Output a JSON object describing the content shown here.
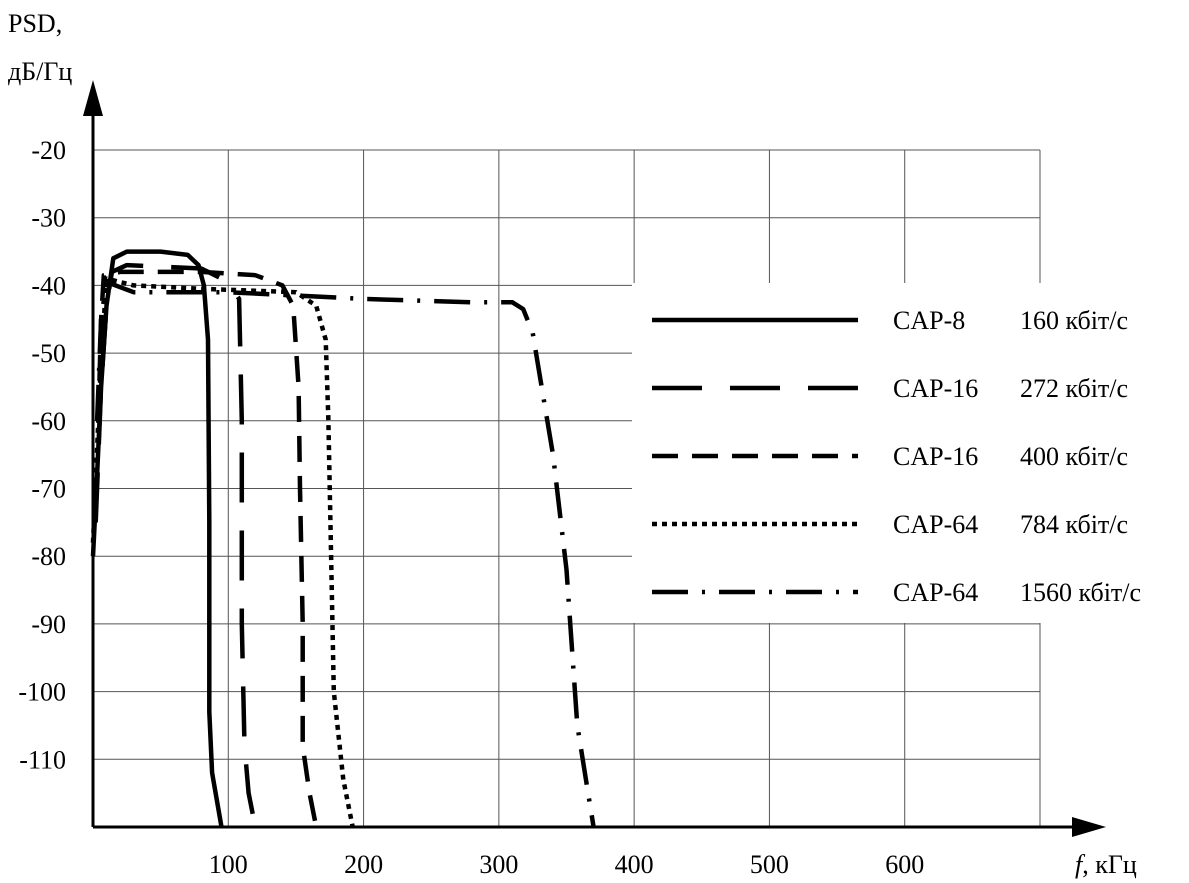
{
  "chart_data": {
    "type": "line",
    "title": "",
    "ylabel_line1": "PSD,",
    "ylabel_line2": "дБ/Гц",
    "xlabel_italic": "f",
    "xlabel_unit": ", кГц",
    "xlim": [
      0,
      700
    ],
    "ylim": [
      -120,
      -20
    ],
    "x_ticks": [
      100,
      200,
      300,
      400,
      500,
      600
    ],
    "y_ticks": [
      -20,
      -30,
      -40,
      -50,
      -60,
      -70,
      -80,
      -90,
      -100,
      -110
    ],
    "grid": true,
    "legend_position": "right",
    "series": [
      {
        "name": "CAP-8",
        "rate": "160 кбіт/с",
        "dash": "solid",
        "points": [
          [
            0,
            -80
          ],
          [
            3,
            -68
          ],
          [
            6,
            -55
          ],
          [
            10,
            -43
          ],
          [
            15,
            -36
          ],
          [
            25,
            -35
          ],
          [
            50,
            -35
          ],
          [
            70,
            -35.5
          ],
          [
            78,
            -37
          ],
          [
            82,
            -40
          ],
          [
            85,
            -48
          ],
          [
            86,
            -75
          ],
          [
            86,
            -103
          ],
          [
            88,
            -112
          ],
          [
            95,
            -120
          ]
        ]
      },
      {
        "name": "CAP-16",
        "rate": "272 кбіт/с",
        "dash": "longdash",
        "points": [
          [
            2,
            -75
          ],
          [
            6,
            -55
          ],
          [
            10,
            -43
          ],
          [
            14,
            -38
          ],
          [
            25,
            -37
          ],
          [
            80,
            -37.5
          ],
          [
            90,
            -38.5
          ],
          [
            100,
            -39.5
          ],
          [
            108,
            -42
          ],
          [
            110,
            -60
          ],
          [
            110,
            -90
          ],
          [
            112,
            -108
          ],
          [
            115,
            -115
          ],
          [
            120,
            -120
          ]
        ]
      },
      {
        "name": "CAP-16",
        "rate": "400 кбіт/с",
        "dash": "dash",
        "points": [
          [
            4,
            -60
          ],
          [
            6,
            -45
          ],
          [
            8,
            -38.5
          ],
          [
            20,
            -38
          ],
          [
            80,
            -38
          ],
          [
            120,
            -38.5
          ],
          [
            140,
            -40
          ],
          [
            148,
            -43
          ],
          [
            152,
            -55
          ],
          [
            153,
            -70
          ],
          [
            155,
            -90
          ],
          [
            155,
            -108
          ],
          [
            160,
            -115
          ],
          [
            165,
            -120
          ]
        ]
      },
      {
        "name": "CAP-64",
        "rate": "784 кбіт/с",
        "dash": "dotted",
        "points": [
          [
            0,
            -78
          ],
          [
            5,
            -55
          ],
          [
            8,
            -45
          ],
          [
            10,
            -39
          ],
          [
            30,
            -40
          ],
          [
            80,
            -40.5
          ],
          [
            150,
            -41
          ],
          [
            165,
            -43
          ],
          [
            172,
            -48
          ],
          [
            174,
            -60
          ],
          [
            176,
            -80
          ],
          [
            178,
            -100
          ],
          [
            185,
            -113
          ],
          [
            192,
            -120
          ]
        ]
      },
      {
        "name": "CAP-64",
        "rate": "1560 кбіт/с",
        "dash": "dashdot",
        "points": [
          [
            3,
            -60
          ],
          [
            6,
            -45
          ],
          [
            10,
            -39.5
          ],
          [
            30,
            -41
          ],
          [
            100,
            -41
          ],
          [
            200,
            -42
          ],
          [
            280,
            -42.5
          ],
          [
            310,
            -42.5
          ],
          [
            318,
            -43.5
          ],
          [
            325,
            -47
          ],
          [
            330,
            -53
          ],
          [
            340,
            -65
          ],
          [
            350,
            -82
          ],
          [
            358,
            -105
          ],
          [
            366,
            -115
          ],
          [
            370,
            -120
          ]
        ]
      }
    ]
  }
}
